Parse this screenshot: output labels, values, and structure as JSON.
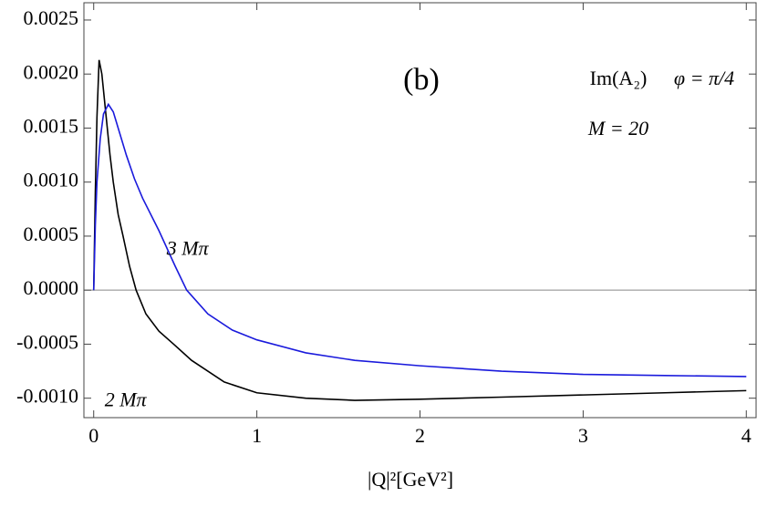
{
  "chart_data": {
    "type": "line",
    "x_label": "|Q|²[GeV²]",
    "annotations": [
      "(b)",
      "Im(A₂)",
      "φ = π/4",
      "M = 20"
    ],
    "xlim": [
      -0.06,
      4.06
    ],
    "ylim": [
      -0.00118,
      0.00266
    ],
    "xticks": [
      0,
      1,
      2,
      3,
      4
    ],
    "yticks": [
      {
        "value": -0.001,
        "label": "-0.0010"
      },
      {
        "value": -0.0005,
        "label": "-0.0005"
      },
      {
        "value": 0,
        "label": "0.0000"
      },
      {
        "value": 0.0005,
        "label": "0.0005"
      },
      {
        "value": 0.001,
        "label": "0.0010"
      },
      {
        "value": 0.0015,
        "label": "0.0015"
      },
      {
        "value": 0.002,
        "label": "0.0020"
      },
      {
        "value": 0.0025,
        "label": "0.0025"
      }
    ],
    "series": [
      {
        "name": "2 Mπ",
        "color": "#000000",
        "x": [
          0,
          0.01,
          0.02,
          0.033,
          0.05,
          0.07,
          0.1,
          0.12,
          0.15,
          0.18,
          0.22,
          0.26,
          0.32,
          0.4,
          0.49,
          0.6,
          0.8,
          1.0,
          1.3,
          1.6,
          2.0,
          2.5,
          3.0,
          3.5,
          4.0
        ],
        "values": [
          0,
          0.0009,
          0.0016,
          0.00213,
          0.002,
          0.0017,
          0.00125,
          0.001,
          0.0007,
          0.0005,
          0.00022,
          0,
          -0.00022,
          -0.00038,
          -0.0005,
          -0.00065,
          -0.00085,
          -0.00095,
          -0.001,
          -0.00102,
          -0.00101,
          -0.00099,
          -0.00097,
          -0.00095,
          -0.00093
        ]
      },
      {
        "name": "3 Mπ",
        "color": "#1a1adc",
        "x": [
          0,
          0.01,
          0.02,
          0.04,
          0.06,
          0.09,
          0.12,
          0.16,
          0.2,
          0.25,
          0.3,
          0.4,
          0.5,
          0.57,
          0.7,
          0.85,
          1.0,
          1.3,
          1.6,
          2.0,
          2.5,
          3.0,
          3.5,
          4.0
        ],
        "values": [
          0,
          0.0006,
          0.001,
          0.0014,
          0.00163,
          0.00172,
          0.00165,
          0.00145,
          0.00125,
          0.00103,
          0.00085,
          0.00055,
          0.00022,
          0,
          -0.00022,
          -0.00037,
          -0.00046,
          -0.00058,
          -0.00065,
          -0.0007,
          -0.00075,
          -0.00078,
          -0.00079,
          -0.0008
        ]
      }
    ]
  }
}
